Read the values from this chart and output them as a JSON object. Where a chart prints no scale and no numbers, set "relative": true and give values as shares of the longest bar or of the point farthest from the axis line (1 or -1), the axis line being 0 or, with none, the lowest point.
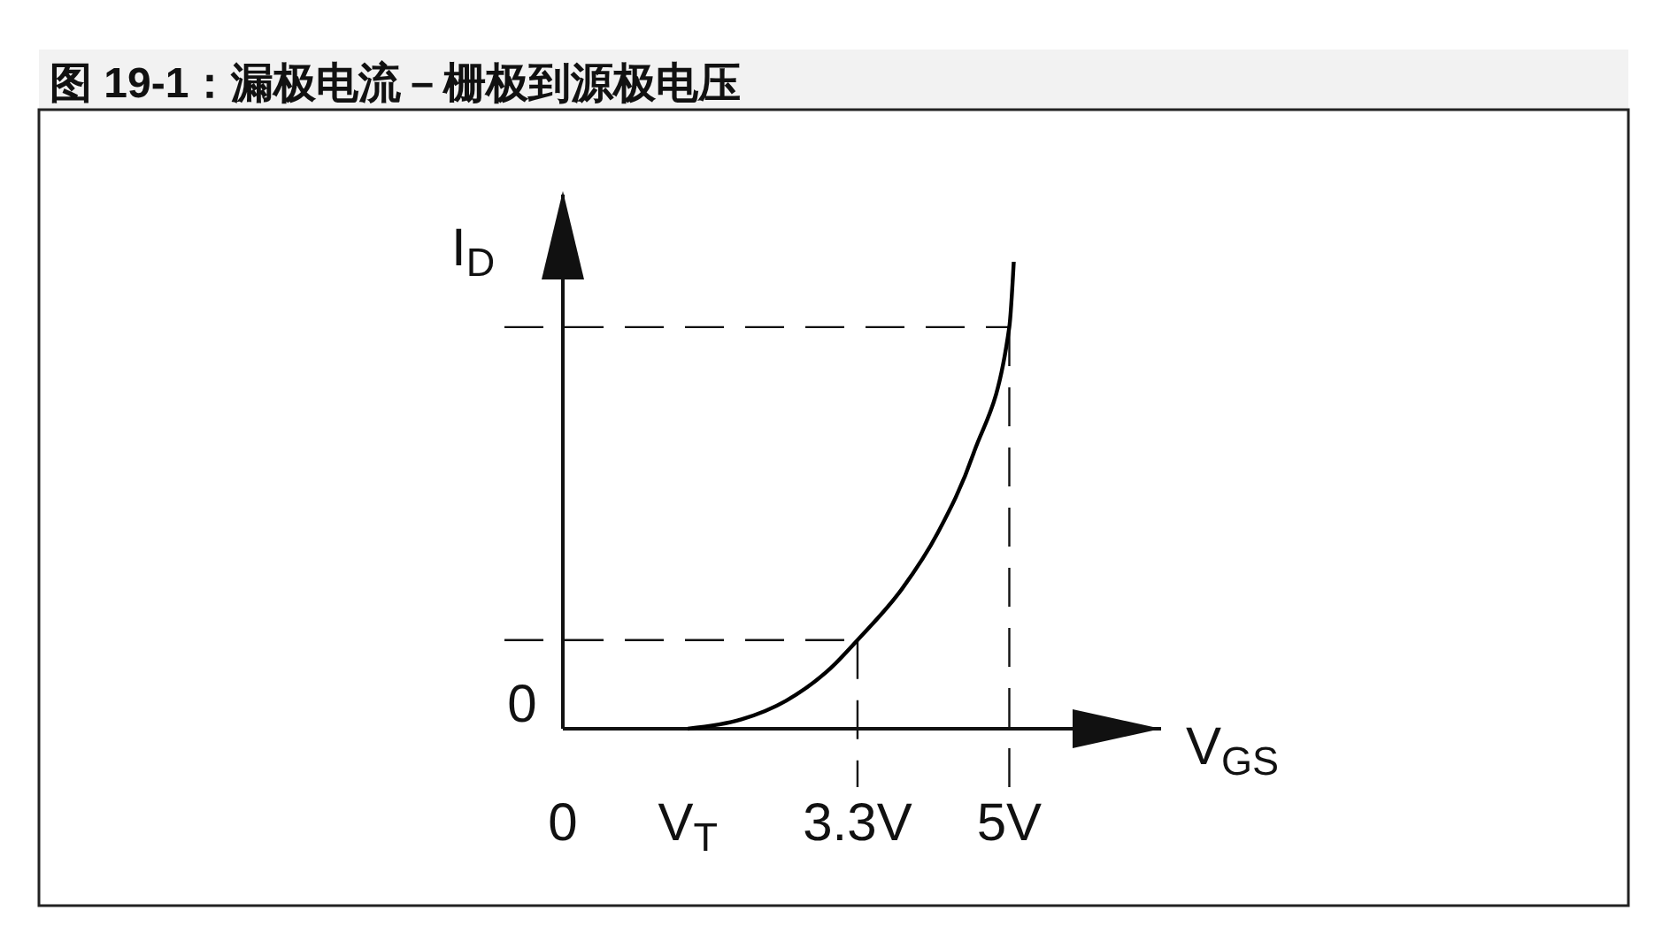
{
  "chart_data": {
    "type": "line",
    "title": "图 19-1：漏极电流－栅极到源极电压",
    "xlabel": "V$_{GS}$",
    "ylabel": "I$_{D}$",
    "relative": true,
    "x": [
      1.4,
      2,
      2.5,
      3,
      3.3,
      3.8,
      4.2,
      4.6,
      5,
      5.05
    ],
    "series": [
      {
        "color": "#000000",
        "values": [
          0,
          0.02,
          0.06,
          0.13,
          0.19,
          0.3,
          0.42,
          0.59,
          0.86,
          1
        ]
      }
    ],
    "xlim": [
      0,
      6.7
    ],
    "xticks": [
      0,
      {
        "value": 1.4,
        "label": "V$_{T}$"
      },
      {
        "value": 3.3,
        "label": "3.3V"
      },
      {
        "value": 5,
        "label": "5V"
      }
    ],
    "ref_lines": [
      {
        "axis": "x",
        "value": 3.3,
        "label": null,
        "line_style": "dashed"
      },
      {
        "axis": "x",
        "value": 5,
        "label": null,
        "line_style": "dashed"
      },
      {
        "axis": "y",
        "value": 0.19,
        "label": null,
        "line_style": "dashed"
      },
      {
        "axis": "y",
        "value": 0.86,
        "label": null,
        "line_style": "dashed"
      }
    ],
    "annotations": [
      "0"
    ],
    "line_style": "solid"
  }
}
